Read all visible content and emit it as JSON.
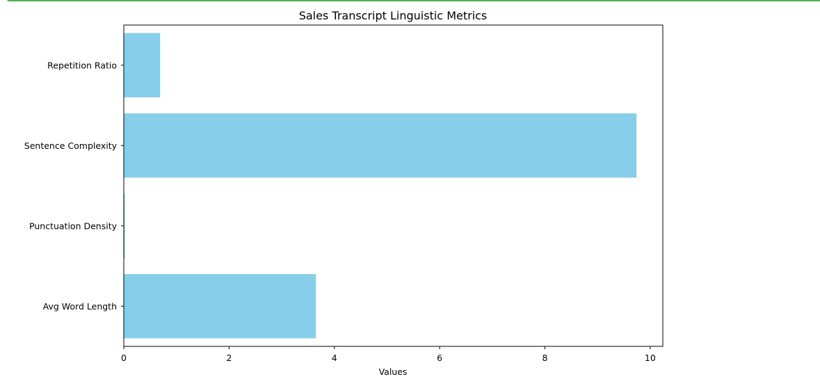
{
  "chart_data": {
    "type": "bar",
    "orientation": "horizontal",
    "title": "Sales Transcript Linguistic Metrics",
    "xlabel": "Values",
    "ylabel": "",
    "categories": [
      "Repetition Ratio",
      "Sentence Complexity",
      "Punctuation Density",
      "Avg Word Length"
    ],
    "values": [
      0.69,
      9.74,
      0.02,
      3.65
    ],
    "xlim": [
      0,
      10.24
    ],
    "xticks": [
      "0",
      "2",
      "4",
      "6",
      "8",
      "10"
    ],
    "grid": false,
    "bar_color": "#87ceeb"
  }
}
